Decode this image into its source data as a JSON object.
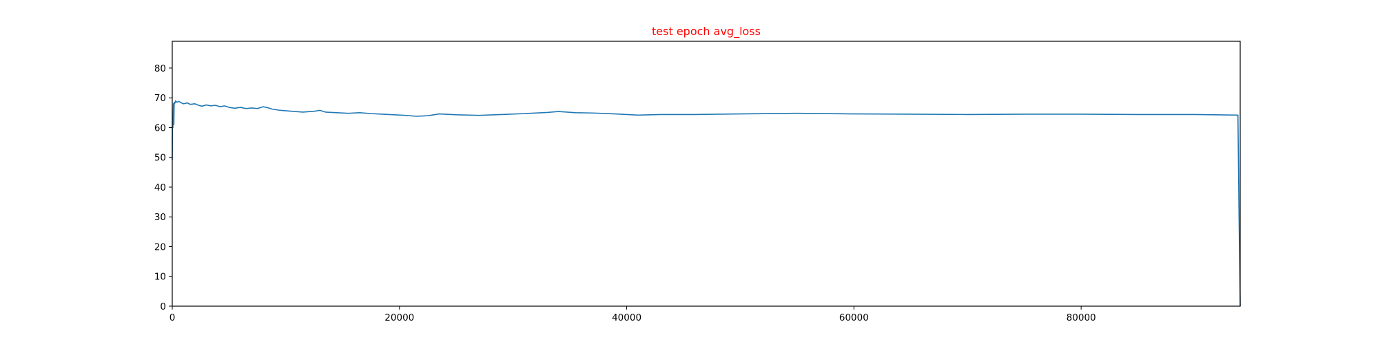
{
  "chart_data": {
    "type": "line",
    "title": "test epoch avg_loss",
    "title_color": "#ff0000",
    "line_color": "#1f77b4",
    "xlabel": "",
    "ylabel": "",
    "xlim": [
      0,
      94000
    ],
    "ylim": [
      0,
      89
    ],
    "x_ticks": [
      0,
      20000,
      40000,
      60000,
      80000
    ],
    "y_ticks": [
      0,
      10,
      20,
      30,
      40,
      50,
      60,
      70,
      80
    ],
    "grid": false,
    "legend": "none",
    "series": [
      {
        "x": [
          0,
          20,
          60,
          100,
          140,
          170,
          200,
          260,
          300,
          400,
          600,
          800,
          1000,
          1300,
          1600,
          2000,
          2300,
          2600,
          3000,
          3400,
          3800,
          4200,
          4600,
          5000,
          5500,
          6000,
          6500,
          7000,
          7500,
          8000,
          8300,
          8800,
          9500,
          10500,
          11500,
          12500,
          13000,
          13500,
          14500,
          15500,
          16500,
          17500,
          18500,
          19500,
          20500,
          21500,
          22500,
          23500,
          25000,
          27000,
          29000,
          31000,
          33000,
          34000,
          35500,
          37000,
          39000,
          41000,
          43000,
          46000,
          50000,
          55000,
          60000,
          65000,
          70000,
          75000,
          80000,
          85000,
          90000,
          93800,
          93900,
          94000
        ],
        "y": [
          49,
          63,
          60,
          68,
          61,
          68.5,
          68,
          68.5,
          69,
          68.5,
          68.8,
          68.3,
          68.0,
          68.3,
          67.8,
          68.0,
          67.5,
          67.2,
          67.6,
          67.3,
          67.5,
          67.0,
          67.3,
          66.8,
          66.5,
          66.8,
          66.4,
          66.6,
          66.4,
          67.0,
          66.8,
          66.2,
          65.8,
          65.5,
          65.2,
          65.5,
          65.8,
          65.2,
          65.0,
          64.8,
          65.0,
          64.7,
          64.5,
          64.3,
          64.1,
          63.8,
          64.0,
          64.6,
          64.3,
          64.1,
          64.4,
          64.7,
          65.1,
          65.4,
          65.0,
          64.9,
          64.6,
          64.2,
          64.4,
          64.4,
          64.6,
          64.8,
          64.6,
          64.5,
          64.4,
          64.5,
          64.5,
          64.4,
          64.4,
          64.2,
          30,
          0
        ]
      }
    ]
  }
}
